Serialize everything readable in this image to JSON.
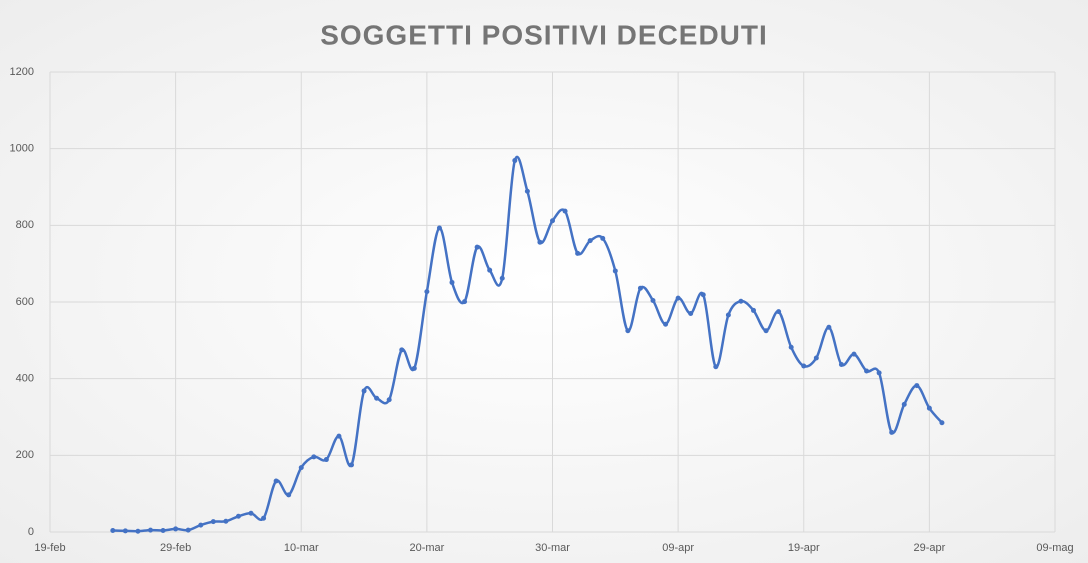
{
  "chart_data": {
    "type": "line",
    "title": "SOGGETTI POSITIVI DECEDUTI",
    "x": [
      "24-feb",
      "25-feb",
      "26-feb",
      "27-feb",
      "28-feb",
      "29-feb",
      "01-mar",
      "02-mar",
      "03-mar",
      "04-mar",
      "05-mar",
      "06-mar",
      "07-mar",
      "08-mar",
      "09-mar",
      "10-mar",
      "11-mar",
      "12-mar",
      "13-mar",
      "14-mar",
      "15-mar",
      "16-mar",
      "17-mar",
      "18-mar",
      "19-mar",
      "20-mar",
      "21-mar",
      "22-mar",
      "23-mar",
      "24-mar",
      "25-mar",
      "26-mar",
      "27-mar",
      "28-mar",
      "29-mar",
      "30-mar",
      "31-mar",
      "01-apr",
      "02-apr",
      "03-apr",
      "04-apr",
      "05-apr",
      "06-apr",
      "07-apr",
      "08-apr",
      "09-apr",
      "10-apr",
      "11-apr",
      "12-apr",
      "13-apr",
      "14-apr",
      "15-apr",
      "16-apr",
      "17-apr",
      "18-apr",
      "19-apr",
      "20-apr",
      "21-apr",
      "22-apr",
      "23-apr",
      "24-apr",
      "25-apr",
      "26-apr",
      "27-apr",
      "28-apr",
      "29-apr",
      "30-apr"
    ],
    "series": [
      {
        "name": "Deceduti",
        "color": "#4472c4",
        "values": [
          4,
          3,
          2,
          5,
          4,
          8,
          5,
          18,
          27,
          28,
          41,
          49,
          36,
          133,
          97,
          168,
          196,
          189,
          250,
          175,
          368,
          349,
          345,
          475,
          427,
          627,
          793,
          651,
          601,
          743,
          683,
          662,
          969,
          889,
          756,
          812,
          837,
          727,
          760,
          766,
          681,
          525,
          636,
          604,
          542,
          610,
          570,
          619,
          431,
          566,
          602,
          578,
          525,
          575,
          482,
          433,
          454,
          534,
          437,
          464,
          420,
          415,
          260,
          333,
          382,
          323,
          285
        ]
      }
    ],
    "xlim": [
      "19-feb",
      "09-mag"
    ],
    "xticks": [
      "19-feb",
      "29-feb",
      "10-mar",
      "20-mar",
      "30-mar",
      "09-apr",
      "19-apr",
      "29-apr",
      "09-mag"
    ],
    "ylim": [
      0,
      1200
    ],
    "yticks": [
      0,
      200,
      400,
      600,
      800,
      1000,
      1200
    ],
    "grid": true
  }
}
